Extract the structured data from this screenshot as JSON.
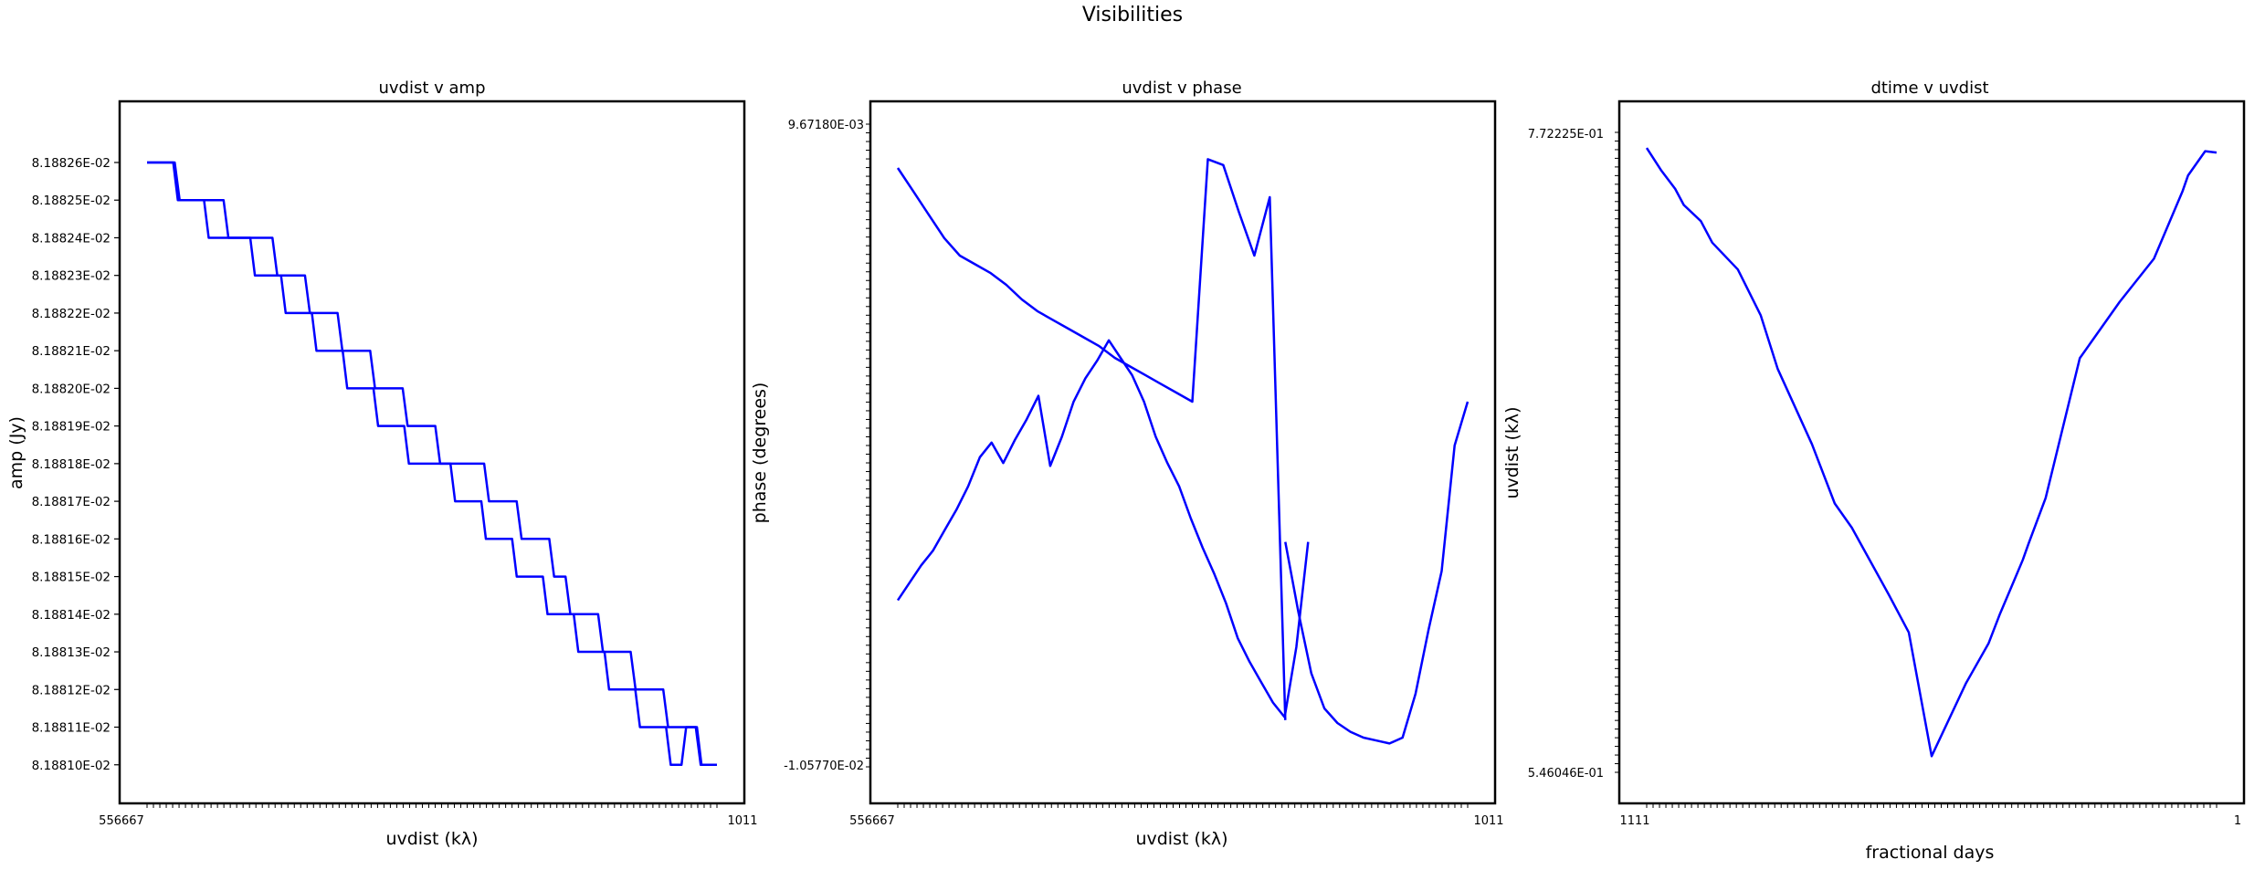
{
  "figure": {
    "title": "Visibilities"
  },
  "colors": {
    "line": "#0000ff",
    "frame": "#000000",
    "background": "#ffffff"
  },
  "chart_data": [
    {
      "type": "line",
      "title": "uvdist v amp",
      "xlabel": "uvdist (kλ)",
      "ylabel": "amp (Jy)",
      "categorical_x": true,
      "x_tick_label_first": "556667",
      "x_tick_label_last": "1011",
      "y_ticks": [
        "8.18826E-02",
        "8.18825E-02",
        "8.18824E-02",
        "8.18823E-02",
        "8.18822E-02",
        "8.18821E-02",
        "8.18820E-02",
        "8.18819E-02",
        "8.18818E-02",
        "8.18817E-02",
        "8.18816E-02",
        "8.18815E-02",
        "8.18814E-02",
        "8.18813E-02",
        "8.18812E-02",
        "8.18811E-02",
        "8.18810E-02"
      ],
      "ylim": [
        0.08188098,
        0.08188268
      ],
      "grid": false,
      "series": [
        {
          "y": [
            0.0818826,
            0.0818826,
            0.0818825,
            0.0818825,
            0.0818825,
            0.0818824,
            0.0818824,
            0.0818824,
            0.0818823,
            0.0818823,
            0.0818822,
            0.0818822,
            0.0818821,
            0.0818821,
            0.081882,
            0.081882,
            0.0818819,
            0.0818819,
            0.0818818,
            0.0818818,
            0.0818818,
            0.0818817,
            0.0818817,
            0.0818816,
            0.0818816,
            0.0818815,
            0.0818814,
            0.0818814,
            0.0818813,
            0.0818813,
            0.0818812,
            0.0818812,
            0.0818811,
            0.0818811,
            0.081881,
            0.081881
          ]
        },
        {
          "y": [
            0.0818826,
            0.0818826,
            0.0818825,
            0.0818825,
            0.0818824,
            0.0818824,
            0.0818824,
            0.0818823,
            0.0818823,
            0.0818822,
            0.0818822,
            0.0818821,
            0.0818821,
            0.081882,
            0.081882,
            0.0818819,
            0.0818819,
            0.0818818,
            0.0818818,
            0.0818818,
            0.0818817,
            0.0818817,
            0.0818816,
            0.0818816,
            0.0818815,
            0.0818815,
            0.0818814,
            0.0818814,
            0.0818813,
            0.0818813,
            0.0818812,
            0.0818812,
            0.0818811,
            0.0818811,
            0.081881,
            0.0818811,
            0.081881,
            0.081881
          ]
        }
      ]
    },
    {
      "type": "line",
      "title": "uvdist v phase",
      "xlabel": "uvdist (kλ)",
      "ylabel": "phase (degrees)",
      "categorical_x": true,
      "categorical_y": true,
      "x_tick_label_first": "556667",
      "x_tick_label_last": "1011",
      "y_tick_label_top": "9.67180E-03",
      "y_tick_label_bottom": "-1.05770E-02",
      "ylim": [
        -0.0115,
        0.0105
      ],
      "grid": false,
      "series": [
        {
          "y": [
            0.009,
            0.0082,
            0.0074,
            0.0066,
            0.006,
            0.0057,
            0.0054,
            0.005,
            0.0045,
            0.0041,
            0.0038,
            0.0035,
            0.0032,
            0.0029,
            0.0025,
            0.0022,
            0.0019,
            0.0016,
            0.0013,
            0.001,
            0.0093,
            0.0091,
            0.0075,
            0.006,
            0.008,
            -0.0099
          ]
        },
        {
          "y": [
            -0.0058,
            -0.0052,
            -0.0046,
            -0.0041,
            -0.0034,
            -0.0027,
            -0.0019,
            -0.0009,
            -0.0004,
            -0.0011,
            -0.0003,
            0.0004,
            0.0012,
            -0.0012,
            -0.0002,
            0.001,
            0.0018,
            0.0024,
            0.0031,
            0.0025,
            0.0019,
            0.001,
            -0.0002,
            -0.0011,
            -0.0019,
            -0.003,
            -0.004,
            -0.0049,
            -0.0059,
            -0.0071,
            -0.0079,
            -0.0086,
            -0.0093,
            -0.0098,
            -0.0074,
            -0.0038
          ]
        },
        {
          "y": [
            -0.0038,
            -0.0062,
            -0.0083,
            -0.0095,
            -0.01,
            -0.0103,
            -0.0105,
            -0.0106,
            -0.0107,
            -0.0105,
            -0.009,
            -0.0068,
            -0.0048,
            -0.0005,
            0.001
          ]
        }
      ]
    },
    {
      "type": "line",
      "title": "dtime v uvdist",
      "xlabel": "fractional days",
      "ylabel": "uvdist (kλ)",
      "categorical_y": true,
      "x_tick_label_first": "1111",
      "x_tick_label_last": "1",
      "y_tick_label_top": "7.72225E-01",
      "y_tick_label_bottom": "5.46046E-01",
      "ylim": [
        0.54,
        0.778
      ],
      "grid": false,
      "series": [
        {
          "x": [
            0.0,
            0.025,
            0.05,
            0.065,
            0.095,
            0.115,
            0.16,
            0.2,
            0.23,
            0.29,
            0.33,
            0.36,
            0.425,
            0.46,
            0.5,
            0.56,
            0.6,
            0.62,
            0.64,
            0.66,
            0.67,
            0.7,
            0.76,
            0.83,
            0.89,
            0.94,
            0.95,
            0.98,
            1.0
          ],
          "y": [
            0.7722,
            0.764,
            0.757,
            0.751,
            0.745,
            0.737,
            0.727,
            0.71,
            0.69,
            0.662,
            0.64,
            0.631,
            0.606,
            0.592,
            0.546,
            0.573,
            0.588,
            0.599,
            0.609,
            0.619,
            0.625,
            0.642,
            0.694,
            0.715,
            0.731,
            0.756,
            0.762,
            0.771,
            0.7705
          ]
        }
      ]
    }
  ]
}
